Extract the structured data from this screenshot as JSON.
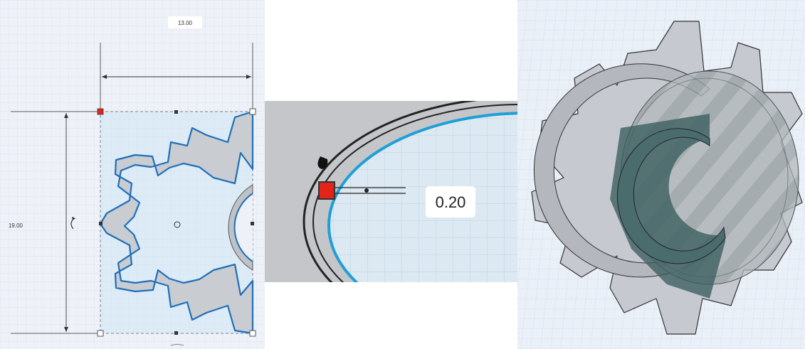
{
  "workplane": {
    "left_view": {
      "width_label": "13.00",
      "height_label": "19.00",
      "rotate_icon": "rotate-arrow-icon",
      "handle_colors": {
        "selected": "#e3241b",
        "normal": "#ffffff",
        "mid": "#333333"
      }
    },
    "middle_view": {
      "value_label": "0.20"
    },
    "right_view": {
      "hole_color": "#3a5e5e"
    }
  },
  "colors": {
    "grid_bg": "#eef2f8",
    "grid_line": "#d4dcea",
    "gear_fill": "#c9ccd1",
    "gear_edge": "#2b7fc7",
    "selection_fill": "#cfe6f5"
  }
}
